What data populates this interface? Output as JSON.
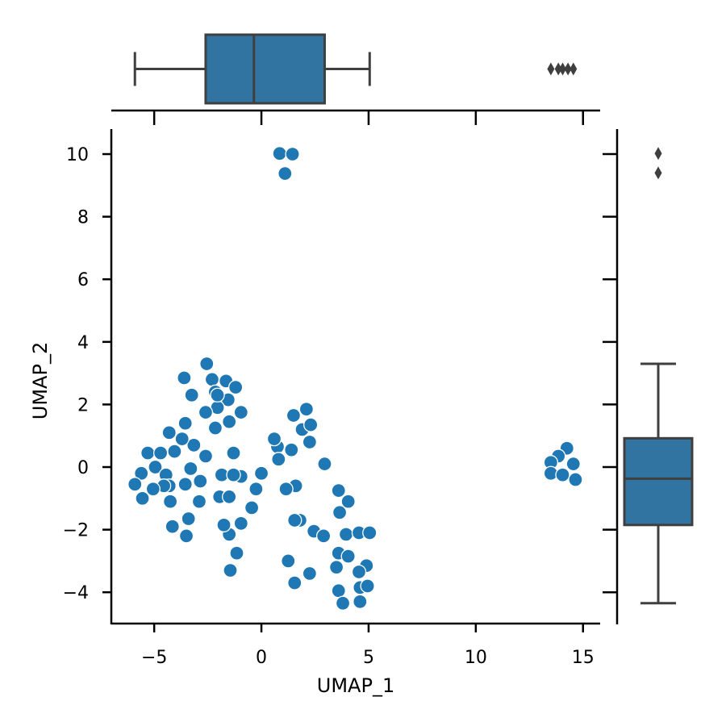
{
  "chart_data": {
    "type": "scatter",
    "title": "",
    "xlabel": "UMAP_1",
    "ylabel": "UMAP_2",
    "xlim": [
      -7,
      15.8
    ],
    "ylim": [
      -5.0,
      10.8
    ],
    "xticks": [
      -5,
      0,
      5,
      10,
      15
    ],
    "yticks": [
      -4,
      -2,
      0,
      2,
      4,
      6,
      8,
      10
    ],
    "xtick_labels": [
      "−5",
      "0",
      "5",
      "10",
      "15"
    ],
    "ytick_labels": [
      "−4",
      "−2",
      "0",
      "2",
      "4",
      "6",
      "8",
      "10"
    ],
    "grid": false,
    "marginal": "boxplot",
    "colors": {
      "points": "#1f77b4",
      "box_fill": "#3274a1",
      "box_line": "#3f3f3f",
      "axis": "#000000"
    },
    "marginal_x_box": {
      "whisker_low": -5.9,
      "q1": -2.6,
      "median": -0.35,
      "q3": 2.95,
      "whisker_high": 5.05,
      "outliers": [
        13.5,
        13.85,
        14.05,
        14.3,
        14.55
      ]
    },
    "marginal_y_box": {
      "whisker_low": -4.35,
      "q1": -1.85,
      "median": -0.37,
      "q3": 0.92,
      "whisker_high": 3.3,
      "outliers": [
        9.4,
        10.02
      ]
    },
    "x": [
      0.85,
      1.45,
      1.1,
      -2.55,
      -2.3,
      -1.65,
      -1.2,
      -3.6,
      -2.15,
      -1.55,
      -2.05,
      -3.25,
      -2.05,
      -0.95,
      -2.6,
      -1.5,
      -2.15,
      -3.55,
      -4.3,
      -3.15,
      -3.7,
      -2.6,
      -4.05,
      -5.3,
      -4.7,
      -1.3,
      -5.6,
      -4.95,
      -4.45,
      -3.3,
      -4.3,
      -3.55,
      -2.85,
      -4.55,
      -5.05,
      -5.55,
      -4.25,
      -2.9,
      -3.4,
      -4.15,
      -3.5,
      -5.9,
      -1.85,
      -0.95,
      -1.3,
      -1.95,
      -1.5,
      -1.5,
      -1.75,
      -1.15,
      -1.45,
      -0.95,
      -0.45,
      -0.25,
      0.0,
      0.75,
      0.8,
      0.6,
      1.4,
      1.5,
      1.9,
      2.1,
      2.3,
      2.25,
      2.95,
      1.6,
      1.15,
      1.8,
      1.55,
      2.45,
      2.9,
      3.65,
      3.6,
      4.05,
      3.95,
      4.55,
      5.05,
      3.6,
      1.25,
      2.25,
      3.5,
      4.9,
      4.55,
      1.55,
      3.6,
      4.6,
      4.95,
      3.8,
      4.6,
      4.05,
      14.25,
      13.85,
      13.5,
      13.5,
      14.55,
      14.05,
      14.65
    ],
    "y": [
      10.02,
      10.0,
      9.38,
      3.3,
      2.8,
      2.75,
      2.55,
      2.85,
      2.4,
      2.15,
      1.9,
      2.3,
      2.3,
      1.75,
      1.75,
      1.45,
      1.25,
      1.4,
      1.1,
      0.7,
      0.9,
      0.35,
      0.5,
      0.45,
      0.45,
      0.45,
      -0.2,
      0.0,
      -0.25,
      -0.05,
      -0.6,
      -0.55,
      -0.45,
      -0.6,
      -0.7,
      -1.0,
      -1.1,
      -1.1,
      -1.65,
      -1.9,
      -2.2,
      -0.55,
      -0.25,
      -0.3,
      -0.25,
      -0.95,
      -0.95,
      -2.15,
      -1.85,
      -2.75,
      -3.3,
      -1.8,
      -1.3,
      -0.7,
      -0.2,
      0.65,
      0.25,
      0.9,
      0.55,
      1.65,
      1.2,
      1.85,
      1.35,
      0.8,
      0.1,
      -0.6,
      -0.7,
      -1.7,
      -1.7,
      -2.05,
      -2.2,
      -1.45,
      -0.75,
      -1.1,
      -2.15,
      -2.1,
      -2.1,
      -2.75,
      -3.0,
      -3.4,
      -3.2,
      -3.15,
      -3.35,
      -3.7,
      -3.95,
      -3.85,
      -3.8,
      -4.35,
      -4.3,
      -2.85,
      0.6,
      0.35,
      0.15,
      -0.2,
      0.1,
      -0.25,
      -0.4
    ]
  }
}
